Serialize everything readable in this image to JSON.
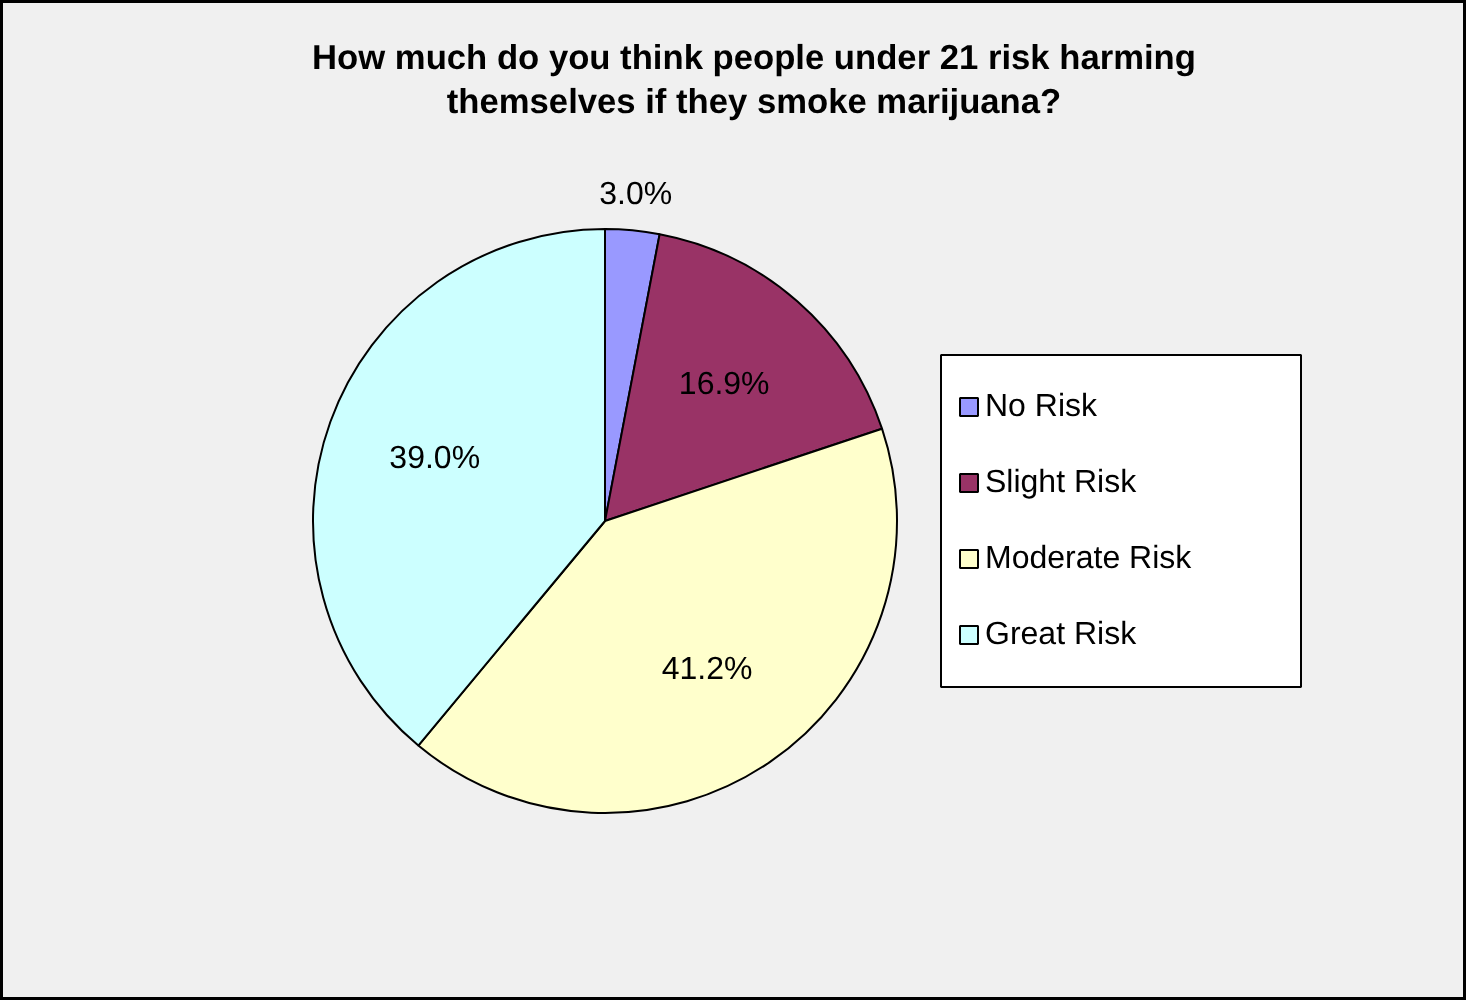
{
  "chart_data": {
    "type": "pie",
    "title": "How much do you think people under 21 risk harming themselves if they smoke marijuana?",
    "categories": [
      "No Risk",
      "Slight Risk",
      "Moderate Risk",
      "Great Risk"
    ],
    "values": [
      3.0,
      16.9,
      41.2,
      39.0
    ],
    "colors": [
      "#9999ff",
      "#993366",
      "#ffffcc",
      "#ccffff"
    ],
    "value_labels": [
      "3.0%",
      "16.9%",
      "41.2%",
      "39.0%"
    ],
    "legend": "right"
  }
}
